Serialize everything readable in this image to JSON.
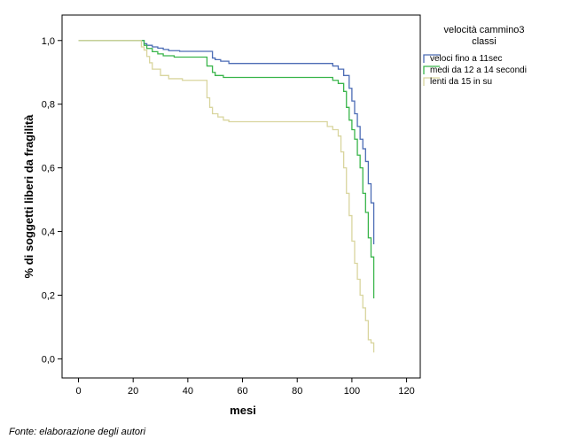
{
  "chart_data": {
    "type": "line",
    "xlabel": "mesi",
    "ylabel": "% di soggetti liberi da fragilità",
    "xlim": [
      -6,
      125
    ],
    "ylim": [
      -0.06,
      1.08
    ],
    "xticks": [
      0,
      20,
      40,
      60,
      80,
      100,
      120
    ],
    "yticks": [
      "0,0",
      "0,2",
      "0,4",
      "0,6",
      "0,8",
      "1,0"
    ],
    "ytick_values": [
      0,
      0.2,
      0.4,
      0.6,
      0.8,
      1.0
    ],
    "legend_title": [
      "velocità cammino3",
      "classi"
    ],
    "legend_position": "outside-right-top",
    "series": [
      {
        "name": "veloci fino a 11sec",
        "color": "#4c6cb5",
        "step": true,
        "x": [
          0,
          19,
          24,
          25,
          27,
          29,
          31,
          33,
          37,
          49,
          50,
          52,
          55,
          90,
          93,
          95,
          97,
          99,
          100,
          101,
          102,
          103,
          104,
          105,
          106,
          107,
          108
        ],
        "y": [
          1.0,
          1.0,
          0.99,
          0.985,
          0.98,
          0.976,
          0.972,
          0.968,
          0.966,
          0.945,
          0.94,
          0.935,
          0.928,
          0.928,
          0.92,
          0.91,
          0.89,
          0.85,
          0.81,
          0.77,
          0.73,
          0.69,
          0.66,
          0.62,
          0.55,
          0.49,
          0.36
        ]
      },
      {
        "name": "medi  da 12 a 14 secondi",
        "color": "#39b54a",
        "step": true,
        "x": [
          0,
          19,
          24,
          25,
          27,
          29,
          31,
          35,
          47,
          49,
          50,
          53,
          90,
          93,
          95,
          97,
          98,
          99,
          100,
          101,
          102,
          103,
          104,
          105,
          106,
          107,
          108
        ],
        "y": [
          1.0,
          1.0,
          0.985,
          0.975,
          0.965,
          0.958,
          0.952,
          0.948,
          0.92,
          0.9,
          0.89,
          0.884,
          0.884,
          0.875,
          0.865,
          0.84,
          0.79,
          0.75,
          0.72,
          0.69,
          0.64,
          0.6,
          0.52,
          0.46,
          0.38,
          0.32,
          0.19
        ]
      },
      {
        "name": "lenti  da 15 in su",
        "color": "#d9d59e",
        "step": true,
        "x": [
          0,
          19,
          23,
          24,
          25,
          26,
          27,
          30,
          33,
          38,
          47,
          48,
          49,
          51,
          53,
          55,
          89,
          91,
          93,
          95,
          96,
          97,
          98,
          99,
          100,
          101,
          102,
          103,
          104,
          105,
          106,
          107,
          108
        ],
        "y": [
          1.0,
          1.0,
          0.98,
          0.97,
          0.95,
          0.93,
          0.91,
          0.89,
          0.88,
          0.875,
          0.82,
          0.79,
          0.77,
          0.76,
          0.75,
          0.745,
          0.745,
          0.73,
          0.72,
          0.7,
          0.65,
          0.6,
          0.52,
          0.45,
          0.37,
          0.3,
          0.25,
          0.2,
          0.16,
          0.12,
          0.06,
          0.05,
          0.02
        ]
      }
    ]
  },
  "source_note": "Fonte: elaborazione degli autori"
}
